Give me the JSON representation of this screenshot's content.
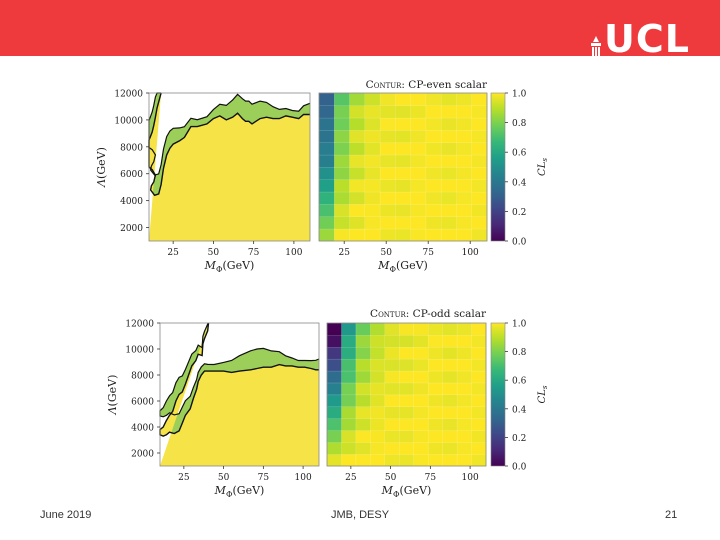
{
  "slide": {
    "banner_color": "#ee3a3d",
    "logo_text": "UCL",
    "footer_date": "June 2019",
    "footer_center": "JMB, DESY",
    "page_number": "21"
  },
  "chart_data": [
    {
      "type": "heatmap",
      "title_prefix": "Contur:",
      "title": "CP-even scalar",
      "xlabel": "M_Φ(GeV)",
      "ylabel": "Λ(GeV)",
      "colorbar_label": "CL_s",
      "xlim": [
        10,
        110
      ],
      "ylim": [
        1000,
        12000
      ],
      "x_ticks": [
        "25",
        "50",
        "75",
        "100"
      ],
      "y_ticks": [
        "2000",
        "4000",
        "6000",
        "8000",
        "10000",
        "12000"
      ],
      "colorbar_ticks": [
        "0.0",
        "0.2",
        "0.4",
        "0.6",
        "0.8",
        "1.0"
      ],
      "colormap": "viridis",
      "exclusion_contour_95": [
        [
          17.5,
          12000
        ],
        [
          16.4,
          11500
        ],
        [
          15,
          10900
        ],
        [
          14,
          10200
        ],
        [
          13,
          9600
        ],
        [
          12,
          9100
        ],
        [
          11,
          8800
        ],
        [
          10,
          8500
        ],
        [
          10,
          6500
        ],
        [
          12,
          6300
        ],
        [
          14,
          5900
        ],
        [
          13,
          5400
        ],
        [
          11.5,
          5100
        ],
        [
          11,
          4800
        ],
        [
          13.5,
          4400
        ],
        [
          16,
          4500
        ],
        [
          17.5,
          5200
        ],
        [
          19,
          6400
        ],
        [
          21,
          7400
        ],
        [
          23,
          7900
        ],
        [
          25,
          8200
        ],
        [
          29,
          8450
        ],
        [
          32,
          8700
        ],
        [
          36,
          9500
        ],
        [
          40,
          9500
        ],
        [
          46,
          9700
        ],
        [
          50,
          10100
        ],
        [
          54,
          10300
        ],
        [
          58,
          10000
        ],
        [
          62,
          10200
        ],
        [
          65,
          10500
        ],
        [
          68,
          10100
        ],
        [
          70,
          9900
        ],
        [
          72,
          9900
        ],
        [
          74,
          9700
        ],
        [
          79,
          10100
        ],
        [
          83,
          10200
        ],
        [
          87,
          10100
        ],
        [
          91,
          10100
        ],
        [
          95,
          10300
        ],
        [
          99,
          10200
        ],
        [
          103,
          10100
        ],
        [
          106,
          10400
        ],
        [
          110,
          10400
        ]
      ]
    },
    {
      "type": "heatmap",
      "title_prefix": "Contur:",
      "title": "CP-odd scalar",
      "xlabel": "M_Φ(GeV)",
      "ylabel": "Λ(GeV)",
      "colorbar_label": "CL_s",
      "xlim": [
        10,
        110
      ],
      "ylim": [
        1000,
        12000
      ],
      "x_ticks": [
        "25",
        "50",
        "75",
        "100"
      ],
      "y_ticks": [
        "2000",
        "4000",
        "6000",
        "8000",
        "10000",
        "12000"
      ],
      "colorbar_ticks": [
        "0.0",
        "0.2",
        "0.4",
        "0.6",
        "0.8",
        "1.0"
      ],
      "colormap": "viridis",
      "exclusion_contour_95": [
        [
          40.5,
          12000
        ],
        [
          40,
          11400
        ],
        [
          38,
          10800
        ],
        [
          37,
          10400
        ],
        [
          36.5,
          9500
        ],
        [
          34,
          9600
        ],
        [
          32.5,
          9100
        ],
        [
          30,
          8700
        ],
        [
          28,
          8000
        ],
        [
          26,
          7300
        ],
        [
          24,
          6700
        ],
        [
          22,
          6500
        ],
        [
          20,
          6000
        ],
        [
          18,
          5200
        ],
        [
          16,
          4900
        ],
        [
          14,
          4500
        ],
        [
          12,
          4000
        ],
        [
          10,
          3800
        ],
        [
          10,
          3400
        ],
        [
          12,
          3300
        ],
        [
          14,
          3400
        ],
        [
          16,
          3600
        ],
        [
          19,
          3500
        ],
        [
          22,
          3700
        ],
        [
          24,
          4300
        ],
        [
          26,
          4900
        ],
        [
          29,
          5400
        ],
        [
          31,
          6200
        ],
        [
          33,
          6900
        ],
        [
          34,
          7500
        ],
        [
          36,
          8000
        ],
        [
          38,
          8300
        ],
        [
          40,
          8300
        ],
        [
          44,
          8300
        ],
        [
          50,
          8300
        ],
        [
          55,
          8200
        ],
        [
          60,
          8300
        ],
        [
          67,
          8400
        ],
        [
          71,
          8500
        ],
        [
          75,
          8600
        ],
        [
          80,
          8600
        ],
        [
          85,
          8800
        ],
        [
          89,
          8700
        ],
        [
          93,
          8700
        ],
        [
          97,
          8600
        ],
        [
          101,
          8600
        ],
        [
          105,
          8500
        ],
        [
          108,
          8400
        ],
        [
          110,
          8400
        ]
      ]
    }
  ]
}
